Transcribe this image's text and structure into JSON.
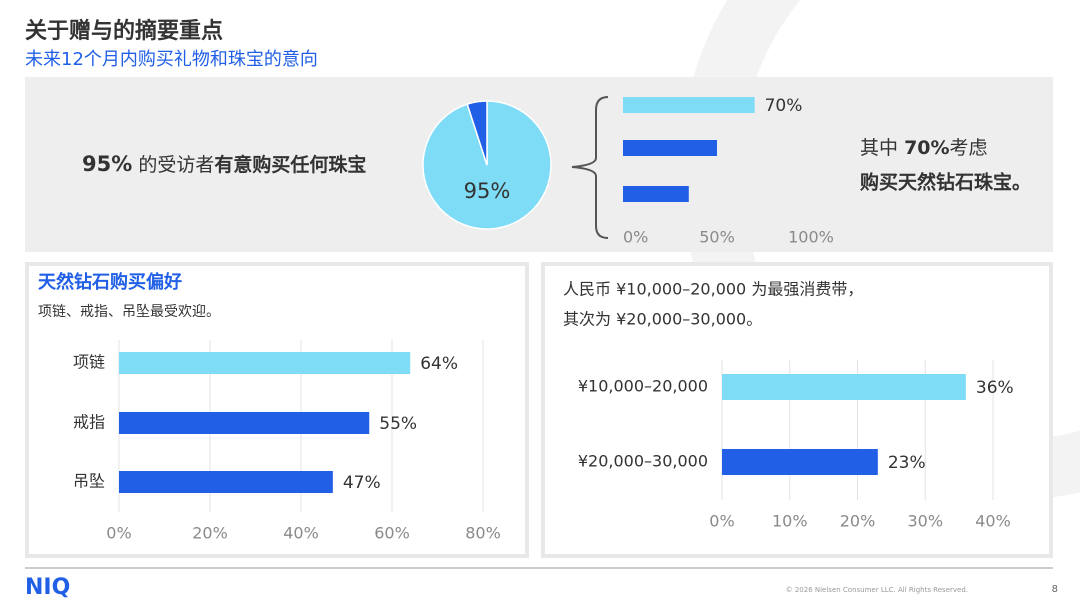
{
  "header": {
    "title": "关于赠与的摘要重点",
    "subtitle": "未来12个月内购买礼物和珠宝的意向"
  },
  "callout_left": [
    "95%",
    "的受访者",
    "有意购买任何珠宝"
  ],
  "callout_right": {
    "line1": [
      "其中",
      "70%",
      "考虑"
    ],
    "line2": "购买天然钻石珠宝。"
  },
  "footer": {
    "logo": "NIQ",
    "copyright": "© 2026 Nielsen Consumer LLC. All Rights Reserved.",
    "page": 8
  },
  "chart_data": [
    {
      "type": "pie",
      "values": [
        95,
        5
      ],
      "value_labels": [
        "95%",
        null
      ],
      "colors": [
        "#7fdcf7",
        "#2160e6"
      ]
    },
    {
      "type": "hbar",
      "values": [
        70,
        50,
        35
      ],
      "value_labels": [
        "70%",
        null,
        null
      ],
      "colors": [
        "#7fdcf7",
        "#2160e6",
        "#2160e6"
      ],
      "xlim": [
        0,
        100
      ],
      "xticks": [
        {
          "value": 0,
          "label": "0%"
        },
        {
          "value": 50,
          "label": "50%"
        },
        {
          "value": 100,
          "label": "100%"
        }
      ],
      "grid": false
    },
    {
      "type": "hbar",
      "title": "天然钻石购买偏好",
      "subtitle": "项链、戒指、吊坠最受欢迎。",
      "categories": [
        "项链",
        "戒指",
        "吊坠"
      ],
      "values": [
        64,
        55,
        47
      ],
      "value_labels": [
        "64%",
        "55%",
        "47%"
      ],
      "colors": [
        "#7fdcf7",
        "#2160e6",
        "#2160e6"
      ],
      "xlim": [
        0,
        80
      ],
      "xticks": [
        {
          "value": 0,
          "label": "0%"
        },
        {
          "value": 20,
          "label": "20%"
        },
        {
          "value": 40,
          "label": "40%"
        },
        {
          "value": 60,
          "label": "60%"
        },
        {
          "value": 80,
          "label": "80%"
        }
      ],
      "grid": true
    },
    {
      "type": "hbar",
      "subtitle": [
        "人民币 ¥10,000–20,000 为最强消费带，",
        "其次为 ¥20,000–30,000。"
      ],
      "categories": [
        "¥10,000–20,000",
        "¥20,000–30,000"
      ],
      "values": [
        36,
        23
      ],
      "value_labels": [
        "36%",
        "23%"
      ],
      "colors": [
        "#7fdcf7",
        "#2160e6"
      ],
      "xlim": [
        0,
        40
      ],
      "xticks": [
        {
          "value": 0,
          "label": "0%"
        },
        {
          "value": 10,
          "label": "10%"
        },
        {
          "value": 20,
          "label": "20%"
        },
        {
          "value": 30,
          "label": "30%"
        },
        {
          "value": 40,
          "label": "40%"
        }
      ],
      "grid": true
    }
  ]
}
